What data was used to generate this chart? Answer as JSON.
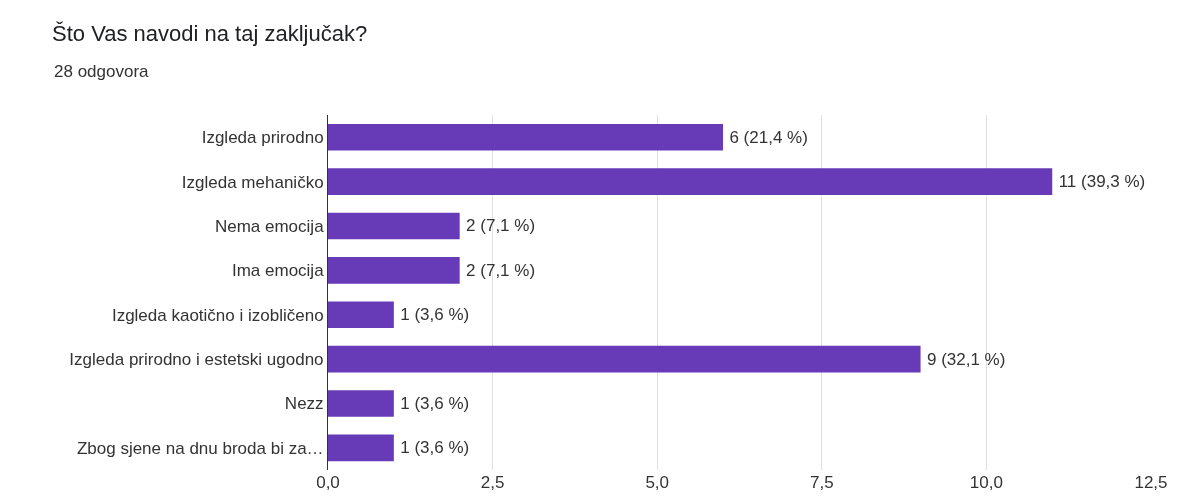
{
  "chart_data": {
    "type": "bar",
    "orientation": "horizontal",
    "title": "Što Vas navodi na taj zaključak?",
    "subtitle": "28 odgovora",
    "categories": [
      "Izgleda prirodno",
      "Izgleda mehaničko",
      "Nema emocija",
      "Ima emocija",
      "Izgleda kaotično i izobličeno",
      "Izgleda prirodno i estetski ugodno",
      "Nezz",
      "Zbog sjene na dnu broda bi za…"
    ],
    "values": [
      6,
      11,
      2,
      2,
      1,
      9,
      1,
      1
    ],
    "value_labels": [
      "6 (21,4 %)",
      "11 (39,3 %)",
      "2 (7,1 %)",
      "2 (7,1 %)",
      "1 (3,6 %)",
      "9 (32,1 %)",
      "1 (3,6 %)",
      "1 (3,6 %)"
    ],
    "color": "#673ab7",
    "xlim": [
      0,
      12.5
    ],
    "xticks": [
      {
        "value": 0,
        "label": "0,0"
      },
      {
        "value": 2.5,
        "label": "2,5"
      },
      {
        "value": 5,
        "label": "5,0"
      },
      {
        "value": 7.5,
        "label": "7,5"
      },
      {
        "value": 10,
        "label": "10,0"
      },
      {
        "value": 12.5,
        "label": "12,5"
      }
    ],
    "grid": "x"
  }
}
